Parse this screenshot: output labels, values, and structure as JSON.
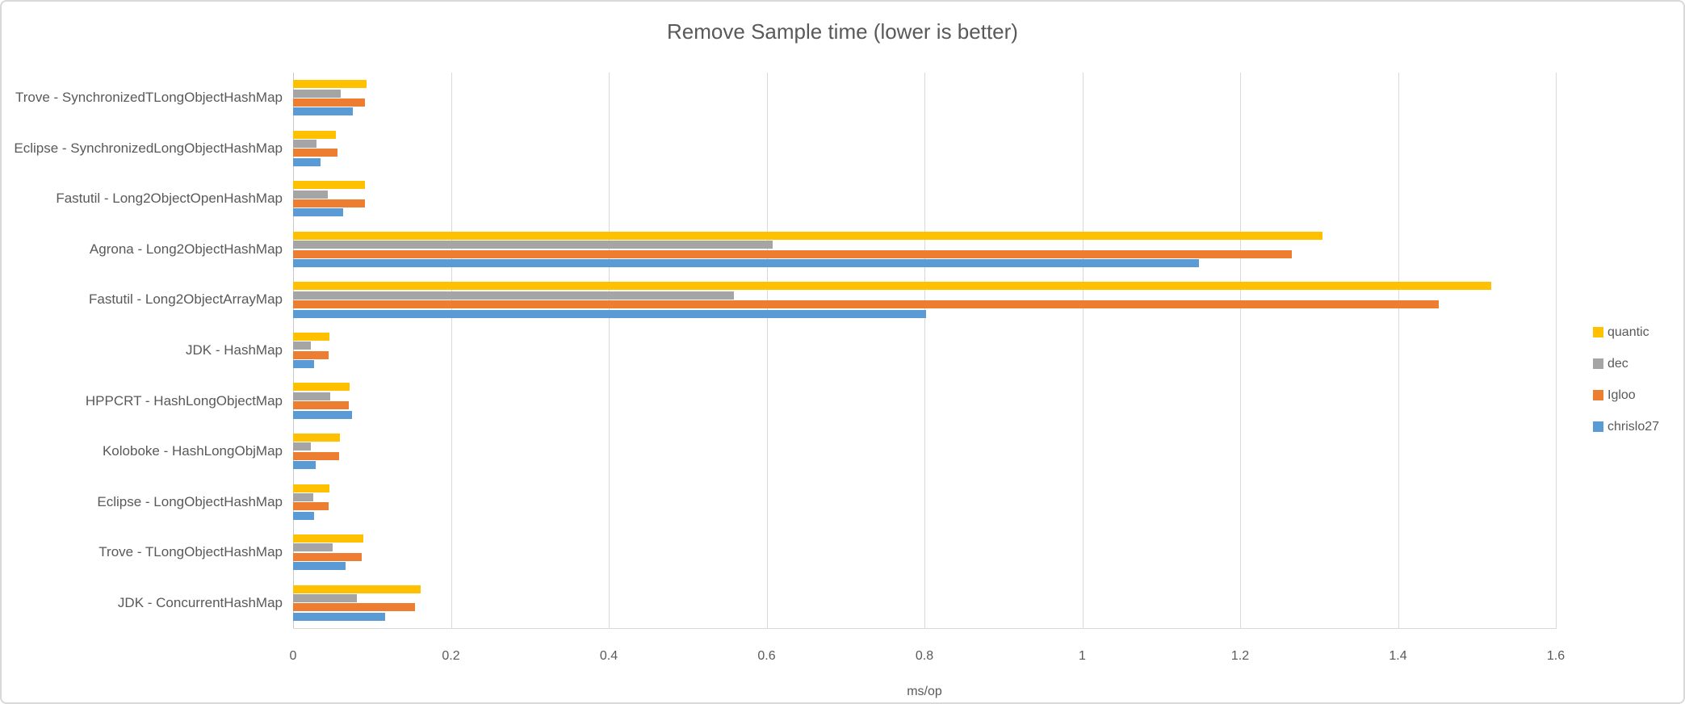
{
  "chart_data": {
    "type": "bar",
    "orientation": "horizontal",
    "title": "Remove Sample time (lower is better)",
    "xlabel": "ms/op",
    "xlim": [
      0,
      1.6
    ],
    "xticks": [
      0,
      0.2,
      0.4,
      0.6,
      0.8,
      1,
      1.2,
      1.4,
      1.6
    ],
    "xtick_labels": [
      "0",
      "0.2",
      "0.4",
      "0.6",
      "0.8",
      "1",
      "1.2",
      "1.4",
      "1.6"
    ],
    "grid": true,
    "legend_position": "right",
    "categories": [
      "Trove - SynchronizedTLongObjectHashMap",
      "Eclipse - SynchronizedLongObjectHashMap",
      "Fastutil - Long2ObjectOpenHashMap",
      "Agrona - Long2ObjectHashMap",
      "Fastutil - Long2ObjectArrayMap",
      "JDK - HashMap",
      "HPPCRT - HashLongObjectMap",
      "Koloboke - HashLongObjMap",
      "Eclipse - LongObjectHashMap",
      "Trove - TLongObjectHashMap",
      "JDK - ConcurrentHashMap"
    ],
    "series": [
      {
        "name": "quantic",
        "color": "#FFC000",
        "values": [
          0.093,
          0.054,
          0.091,
          1.304,
          1.518,
          0.046,
          0.072,
          0.059,
          0.046,
          0.089,
          0.162
        ]
      },
      {
        "name": "dec",
        "color": "#A5A5A5",
        "values": [
          0.06,
          0.03,
          0.044,
          0.608,
          0.559,
          0.023,
          0.047,
          0.023,
          0.026,
          0.05,
          0.081
        ]
      },
      {
        "name": "Igloo",
        "color": "#ED7D31",
        "values": [
          0.091,
          0.056,
          0.091,
          1.265,
          1.452,
          0.045,
          0.071,
          0.058,
          0.045,
          0.087,
          0.154
        ]
      },
      {
        "name": "chrislo27",
        "color": "#5B9BD5",
        "values": [
          0.076,
          0.035,
          0.063,
          1.148,
          0.802,
          0.027,
          0.075,
          0.029,
          0.027,
          0.066,
          0.117
        ]
      }
    ]
  },
  "colors": {
    "text": "#595959",
    "gridline": "#D9D9D9",
    "background": "#FFFFFF",
    "frame_border": "#D9D9D9"
  }
}
